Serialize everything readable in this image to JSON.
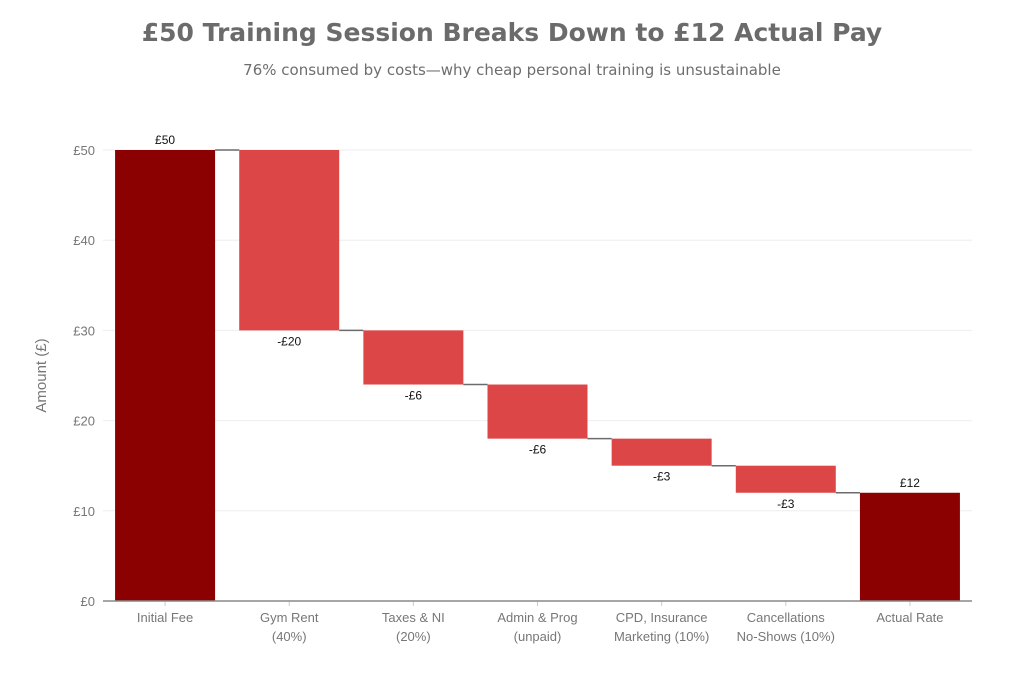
{
  "chart_data": {
    "type": "waterfall",
    "title": "£50 Training Session Breaks Down to £12 Actual Pay",
    "subtitle": "76% consumed by costs—why cheap personal training is unsustainable",
    "ylabel": "Amount (£)",
    "xlabel": "",
    "ylim": [
      0,
      50
    ],
    "yticks": [
      0,
      10,
      20,
      30,
      40,
      50
    ],
    "ytick_labels": [
      "£0",
      "£10",
      "£20",
      "£30",
      "£40",
      "£50"
    ],
    "grid": true,
    "categories": [
      [
        "Initial Fee"
      ],
      [
        "Gym Rent",
        "(40%)"
      ],
      [
        "Taxes & NI",
        "(20%)"
      ],
      [
        "Admin & Prog",
        "(unpaid)"
      ],
      [
        "CPD, Insurance",
        "Marketing (10%)"
      ],
      [
        "Cancellations",
        "No-Shows (10%)"
      ],
      [
        "Actual Rate"
      ]
    ],
    "values": [
      50,
      -20,
      -6,
      -6,
      -3,
      -3,
      12
    ],
    "measure": [
      "total",
      "relative",
      "relative",
      "relative",
      "relative",
      "relative",
      "total"
    ],
    "data_labels": [
      "£50",
      "-£20",
      "-£6",
      "-£6",
      "-£3",
      "-£3",
      "£12"
    ],
    "colors": {
      "total": "#8b0000",
      "decrease": "#dc4646",
      "connector": "#6b6b6b"
    }
  }
}
